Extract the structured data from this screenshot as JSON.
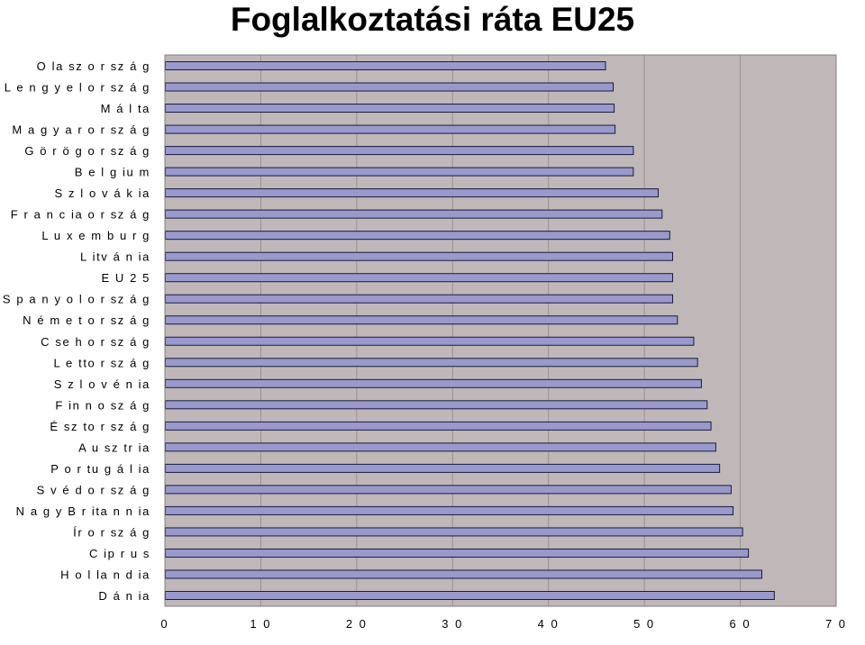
{
  "chart_data": {
    "type": "bar",
    "orientation": "horizontal",
    "title": "Foglalkoztatási ráta EU25",
    "categories": [
      "O la sz o r sz á g",
      "L e n g y e l o r sz á g",
      "M á l ta",
      "M a g y a r o r sz á g",
      "G ö r ö g o r sz á g",
      "B e l g iu m",
      "S z l o v á k ia",
      "F r a n c ia o r sz á g",
      "L u x e m b u r g",
      "L itv á n ia",
      "E U 2 5",
      "S p a n y o l o r sz á g",
      "N é m e t o r sz á g",
      "C se h o r sz á g",
      "L e tto r sz á g",
      "S z l o v é n ia",
      "F in n o sz á g",
      "É sz to r sz á g",
      "A u sz tr ia",
      "P o r tu g á l ia",
      "S v é d o r sz á g",
      "N a g y B r ita n n ia",
      "Ír o r sz á g",
      "C ip r u s",
      "H o l la n d ia",
      "D á n ia"
    ],
    "values": [
      45.9,
      46.7,
      46.8,
      46.9,
      48.8,
      48.8,
      51.4,
      51.8,
      52.6,
      52.9,
      52.9,
      52.9,
      53.4,
      55.1,
      55.5,
      55.9,
      56.5,
      56.9,
      57.4,
      57.8,
      59.0,
      59.2,
      60.2,
      60.8,
      62.2,
      63.5
    ],
    "xlim": [
      0,
      70
    ],
    "x_ticks": [
      "0",
      "1 0",
      "2 0",
      "3 0",
      "4 0",
      "5 0",
      "6 0",
      "7 0"
    ],
    "x_tick_values": [
      0,
      10,
      20,
      30,
      40,
      50,
      60,
      70
    ],
    "grid": true,
    "colors": {
      "bar_fill": "#9999cc",
      "bar_stroke": "#1a1a40",
      "plot_background": "#c0b8b8",
      "gridline": "#9a9090",
      "frame": "#808080"
    }
  }
}
